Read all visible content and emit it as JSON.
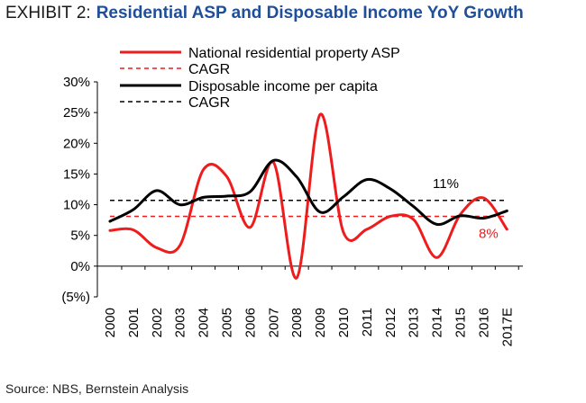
{
  "header": {
    "exhibit_label": "EXHIBIT 2:",
    "title": "Residential ASP and Disposable Income YoY Growth"
  },
  "footer": {
    "source": "Source: NBS, Bernstein Analysis"
  },
  "colors": {
    "asp": "#ee1c1c",
    "income": "#000000",
    "title": "#1f4e9a"
  },
  "chart_data": {
    "type": "line",
    "categories": [
      "2000",
      "2001",
      "2002",
      "2003",
      "2004",
      "2005",
      "2006",
      "2007",
      "2008",
      "2009",
      "2010",
      "2011",
      "2012",
      "2013",
      "2014",
      "2015",
      "2016",
      "2017E"
    ],
    "ylim": [
      -5,
      30
    ],
    "yticks": [
      -5,
      0,
      5,
      10,
      15,
      20,
      25,
      30
    ],
    "ytick_labels": [
      "(5%)",
      "0%",
      "5%",
      "10%",
      "15%",
      "20%",
      "25%",
      "30%"
    ],
    "series": [
      {
        "name": "National residential property ASP",
        "color": "#ee1c1c",
        "style": "solid",
        "values": [
          5.8,
          5.9,
          3.0,
          3.4,
          15.7,
          14.6,
          6.3,
          16.9,
          -1.9,
          24.7,
          5.5,
          6.0,
          8.1,
          7.6,
          1.4,
          8.4,
          11.1,
          6.0
        ]
      },
      {
        "name": "CAGR",
        "color": "#ee1c1c",
        "style": "dashed",
        "constant": 8.1
      },
      {
        "name": "Disposable income per capita",
        "color": "#000000",
        "style": "solid",
        "values": [
          7.3,
          9.2,
          12.3,
          10.0,
          11.2,
          11.4,
          12.1,
          17.2,
          14.5,
          8.8,
          11.3,
          14.1,
          12.6,
          9.7,
          6.8,
          8.2,
          7.8,
          9.0
        ]
      },
      {
        "name": "CAGR",
        "color": "#000000",
        "style": "dashed",
        "constant": 10.7
      }
    ],
    "annotations": [
      {
        "text": "11%",
        "color": "#000000"
      },
      {
        "text": "8%",
        "color": "#ee1c1c"
      }
    ],
    "legend": "top"
  }
}
